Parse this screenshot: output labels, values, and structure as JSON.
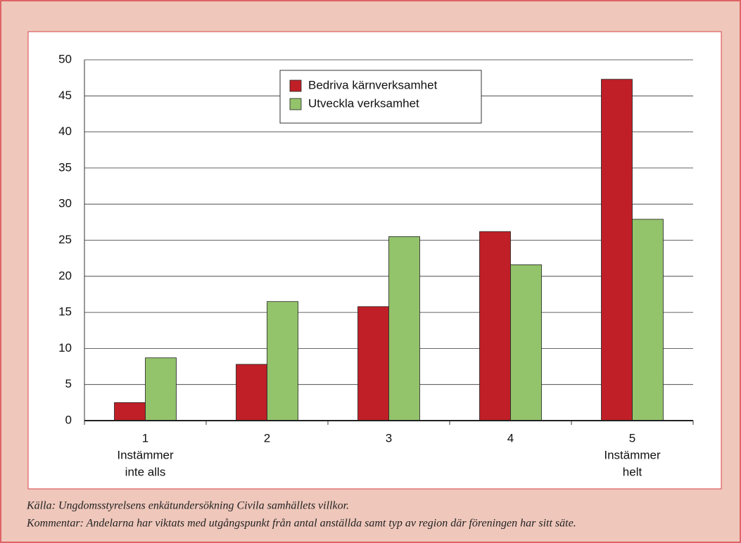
{
  "chart_data": {
    "type": "bar",
    "categories": [
      [
        "1",
        "Instämmer",
        "inte alls"
      ],
      [
        "2"
      ],
      [
        "3"
      ],
      [
        "4"
      ],
      [
        "5",
        "Instämmer",
        "helt"
      ]
    ],
    "series": [
      {
        "name": "Bedriva kärnverksamhet",
        "color": "#c01f27",
        "values": [
          2.5,
          7.8,
          15.8,
          26.2,
          47.3
        ]
      },
      {
        "name": "Utveckla verksamhet",
        "color": "#93c36b",
        "values": [
          8.7,
          16.5,
          25.5,
          21.6,
          27.9
        ]
      }
    ],
    "ylim": [
      0,
      50
    ],
    "yticks": [
      0,
      5,
      10,
      15,
      20,
      25,
      30,
      35,
      40,
      45,
      50
    ],
    "grid": true,
    "legend": "top",
    "notes": [
      "Källa: Ungdomsstyrelsens enkätundersökning Civila samhällets villkor.",
      "Kommentar: Andelarna har viktats med utgångspunkt från antal anställda samt typ av region där föreningen har sitt säte."
    ]
  }
}
